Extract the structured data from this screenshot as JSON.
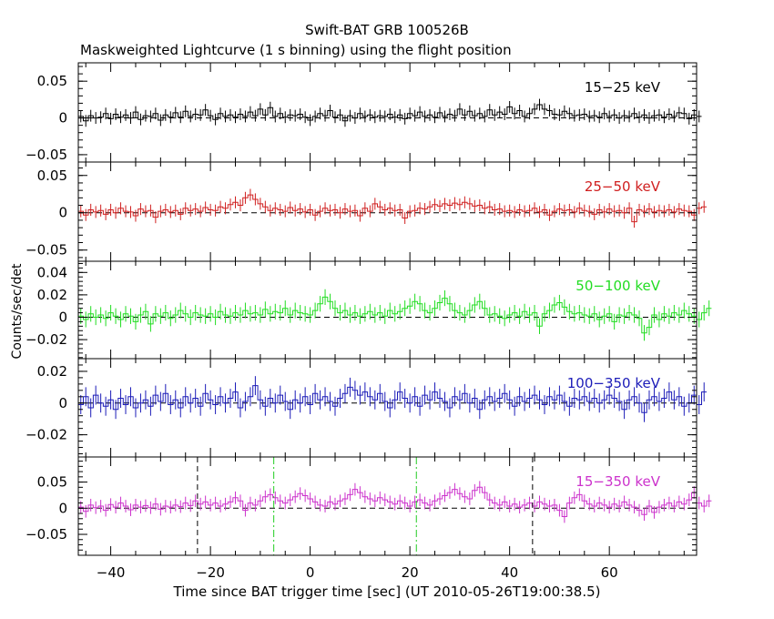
{
  "title": "Swift-BAT GRB 100526B",
  "subtitle": "Maskweighted Lightcurve (1 s binning) using the flight position",
  "xlabel": "Time since BAT trigger time [sec] (UT 2010-05-26T19:00:38.5)",
  "ylabel": "Counts/sec/det",
  "chart_data": {
    "type": "line",
    "xlim": [
      -46.5,
      77.5
    ],
    "x_ticks": [
      -40,
      -20,
      0,
      20,
      40,
      60
    ],
    "x_tick_labels": [
      "−40",
      "−20",
      "0",
      "20",
      "40",
      "60"
    ],
    "dashed_markers_x": [
      -22.6,
      44.6
    ],
    "dashdot_markers_x": [
      -7.3,
      21.3
    ],
    "panels": [
      {
        "band": "15−25 keV",
        "color": "#000000",
        "ylim": [
          -0.06,
          0.075
        ],
        "y_ticks": [
          -0.05,
          0,
          0.05
        ],
        "y_tick_labels": [
          "−0.05",
          "0",
          "0.05"
        ],
        "values": [
          0.002,
          -0.004,
          0.003,
          0.0,
          0.001,
          0.006,
          -0.001,
          0.005,
          0.001,
          0.004,
          0.0,
          0.008,
          -0.002,
          0.003,
          0.002,
          0.006,
          -0.003,
          0.004,
          0.001,
          0.007,
          0.001,
          0.009,
          0.002,
          0.005,
          0.004,
          0.011,
          0.003,
          -0.002,
          0.006,
          0.002,
          0.004,
          0.001,
          0.005,
          0.002,
          0.008,
          0.003,
          0.012,
          0.004,
          0.014,
          0.002,
          0.006,
          0.001,
          0.004,
          0.003,
          0.005,
          0.001,
          -0.003,
          0.002,
          0.006,
          0.003,
          0.01,
          0.001,
          0.004,
          -0.004,
          0.003,
          0.0,
          0.006,
          0.002,
          0.004,
          0.001,
          0.003,
          0.002,
          0.005,
          0.001,
          0.004,
          -0.001,
          0.006,
          0.003,
          0.008,
          0.002,
          0.004,
          0.001,
          0.007,
          0.002,
          0.005,
          0.003,
          0.012,
          0.004,
          0.009,
          0.003,
          0.006,
          0.002,
          0.011,
          0.004,
          0.008,
          0.005,
          0.015,
          0.006,
          0.01,
          0.002,
          0.006,
          0.012,
          0.018,
          0.012,
          0.01,
          0.005,
          0.004,
          0.009,
          0.006,
          0.003,
          0.004,
          0.005,
          0.002,
          0.003,
          0.001,
          0.006,
          0.002,
          0.004,
          0.0,
          0.003,
          0.002,
          0.006,
          0.001,
          0.004,
          0.0,
          0.003,
          0.004,
          0.001,
          0.005,
          0.002,
          0.007,
          0.006,
          -0.001,
          0.004,
          0.002
        ],
        "errors": 0.008
      },
      {
        "band": "25−50 keV",
        "color": "#d02020",
        "ylim": [
          -0.065,
          0.068
        ],
        "y_ticks": [
          -0.05,
          0,
          0.05
        ],
        "y_tick_labels": [
          "−0.05",
          "0",
          "0.05"
        ],
        "values": [
          0.002,
          -0.003,
          0.004,
          0.001,
          0.003,
          -0.002,
          0.004,
          0.0,
          0.006,
          0.002,
          0.001,
          -0.004,
          0.005,
          0.002,
          0.003,
          -0.006,
          0.002,
          0.004,
          0.001,
          0.003,
          -0.002,
          0.006,
          0.003,
          0.005,
          0.002,
          0.007,
          0.004,
          0.003,
          0.008,
          0.006,
          0.011,
          0.014,
          0.01,
          0.02,
          0.024,
          0.018,
          0.012,
          0.008,
          0.003,
          0.006,
          0.004,
          0.002,
          0.007,
          0.003,
          0.005,
          0.001,
          0.004,
          -0.003,
          0.002,
          0.006,
          0.003,
          0.004,
          0.0,
          0.005,
          0.002,
          0.003,
          -0.004,
          0.006,
          0.002,
          0.012,
          0.008,
          0.004,
          0.006,
          0.003,
          0.004,
          -0.007,
          0.002,
          0.003,
          0.006,
          0.005,
          0.008,
          0.011,
          0.009,
          0.012,
          0.01,
          0.013,
          0.011,
          0.014,
          0.012,
          0.009,
          0.01,
          0.006,
          0.008,
          0.004,
          0.005,
          0.002,
          0.003,
          0.001,
          0.004,
          0.002,
          0.003,
          0.006,
          0.001,
          0.004,
          -0.003,
          0.002,
          0.005,
          0.003,
          0.004,
          0.001,
          0.006,
          0.003,
          0.002,
          -0.002,
          0.004,
          0.001,
          0.005,
          0.002,
          0.003,
          0.0,
          0.006,
          -0.012,
          0.004,
          0.002,
          0.005,
          0.001,
          0.003,
          0.002,
          0.004,
          0.001,
          0.005,
          0.003,
          0.002,
          -0.003,
          0.006,
          0.008
        ],
        "errors": 0.008
      },
      {
        "band": "50−100 keV",
        "color": "#22dd22",
        "ylim": [
          -0.037,
          0.05
        ],
        "y_ticks": [
          -0.02,
          0,
          0.02,
          0.04
        ],
        "y_tick_labels": [
          "−0.02",
          "0",
          "0.02",
          "0.04"
        ],
        "values": [
          0.001,
          -0.002,
          0.003,
          0.0,
          0.002,
          -0.001,
          0.004,
          0.001,
          -0.002,
          0.003,
          0.001,
          -0.004,
          0.002,
          0.005,
          -0.006,
          0.003,
          0.001,
          0.004,
          -0.001,
          0.002,
          0.006,
          0.003,
          0.0,
          0.004,
          0.002,
          0.001,
          0.003,
          0.0,
          0.005,
          0.002,
          0.001,
          0.004,
          0.002,
          0.006,
          0.003,
          0.004,
          0.002,
          0.007,
          0.003,
          0.005,
          0.004,
          0.008,
          0.002,
          0.006,
          0.004,
          0.003,
          0.002,
          0.006,
          0.012,
          0.018,
          0.014,
          0.008,
          0.004,
          0.006,
          0.002,
          0.004,
          0.001,
          0.003,
          0.005,
          0.002,
          0.004,
          0.001,
          0.006,
          0.003,
          0.005,
          0.008,
          0.01,
          0.014,
          0.012,
          0.006,
          0.004,
          0.008,
          0.013,
          0.017,
          0.012,
          0.006,
          0.004,
          0.002,
          0.006,
          0.011,
          0.014,
          0.008,
          0.002,
          0.003,
          0.001,
          -0.001,
          0.002,
          0.004,
          0.001,
          0.005,
          0.002,
          0.004,
          -0.008,
          0.003,
          0.006,
          0.011,
          0.013,
          0.009,
          0.005,
          0.003,
          0.004,
          0.002,
          0.001,
          0.003,
          -0.002,
          0.001,
          0.003,
          -0.004,
          0.002,
          0.001,
          0.004,
          0.002,
          -0.001,
          -0.014,
          -0.009,
          0.002,
          -0.002,
          0.003,
          0.001,
          0.004,
          0.002,
          0.006,
          0.003,
          0.001,
          -0.002,
          0.004,
          0.008
        ],
        "errors": 0.007
      },
      {
        "band": "100−350 keV",
        "color": "#1c1cb8",
        "ylim": [
          -0.034,
          0.028
        ],
        "y_ticks": [
          -0.02,
          0,
          0.02
        ],
        "y_tick_labels": [
          "−0.02",
          "0",
          "0.02"
        ],
        "values": [
          -0.001,
          0.004,
          -0.003,
          0.005,
          0.0,
          -0.002,
          0.002,
          -0.004,
          0.003,
          -0.001,
          0.004,
          -0.003,
          0.0,
          0.002,
          -0.002,
          0.005,
          0.001,
          0.006,
          -0.001,
          0.002,
          -0.003,
          0.004,
          0.0,
          0.003,
          -0.002,
          0.006,
          0.002,
          -0.001,
          0.004,
          0.0,
          0.003,
          0.007,
          -0.003,
          0.001,
          0.004,
          0.011,
          0.002,
          -0.002,
          0.003,
          0.0,
          0.005,
          0.001,
          -0.004,
          0.002,
          0.0,
          0.004,
          -0.001,
          0.006,
          0.002,
          0.004,
          0.001,
          -0.002,
          0.003,
          0.006,
          0.01,
          0.008,
          0.005,
          0.007,
          0.004,
          0.002,
          0.006,
          0.001,
          -0.003,
          0.002,
          0.007,
          0.003,
          0.0,
          0.004,
          -0.002,
          0.005,
          0.002,
          0.007,
          0.003,
          0.001,
          -0.003,
          0.004,
          0.002,
          0.006,
          0.0,
          0.003,
          -0.004,
          0.002,
          0.004,
          0.001,
          0.003,
          0.006,
          0.002,
          -0.002,
          0.004,
          0.001,
          0.003,
          0.005,
          0.002,
          -0.001,
          0.004,
          0.002,
          0.005,
          0.001,
          -0.002,
          0.003,
          0.002,
          0.004,
          0.001,
          0.003,
          0.0,
          0.002,
          0.005,
          0.003,
          0.001,
          -0.004,
          0.002,
          0.004,
          0.0,
          -0.006,
          0.002,
          0.004,
          0.001,
          0.003,
          0.007,
          0.002,
          0.004,
          -0.002,
          0.0,
          0.005,
          -0.001,
          0.007
        ],
        "errors": 0.006
      },
      {
        "band": "15−350 keV",
        "color": "#cc33cc",
        "ylim": [
          -0.09,
          0.098
        ],
        "y_ticks": [
          -0.05,
          0,
          0.05
        ],
        "y_tick_labels": [
          "−0.05",
          "0",
          "0.05"
        ],
        "values": [
          0.002,
          -0.006,
          0.006,
          0.001,
          0.004,
          -0.004,
          0.007,
          0.002,
          0.01,
          0.004,
          -0.003,
          0.006,
          0.002,
          0.005,
          0.001,
          0.008,
          -0.002,
          0.004,
          0.002,
          0.006,
          0.003,
          0.01,
          0.005,
          0.014,
          0.008,
          0.012,
          0.006,
          0.01,
          0.004,
          0.008,
          0.012,
          0.02,
          0.014,
          -0.004,
          0.01,
          0.006,
          0.014,
          0.022,
          0.026,
          0.02,
          0.014,
          0.01,
          0.016,
          0.022,
          0.028,
          0.024,
          0.018,
          0.012,
          0.006,
          0.004,
          0.012,
          0.008,
          0.014,
          0.018,
          0.026,
          0.036,
          0.03,
          0.022,
          0.018,
          0.014,
          0.02,
          0.016,
          0.012,
          0.008,
          0.014,
          0.01,
          0.004,
          0.012,
          0.016,
          0.01,
          0.006,
          0.014,
          0.018,
          0.024,
          0.03,
          0.036,
          0.028,
          0.022,
          0.018,
          0.034,
          0.04,
          0.03,
          0.016,
          0.01,
          0.006,
          0.012,
          0.004,
          0.008,
          0.002,
          0.006,
          0.01,
          0.004,
          0.012,
          0.008,
          0.004,
          0.006,
          -0.004,
          -0.016,
          0.01,
          0.02,
          0.026,
          0.014,
          0.008,
          0.004,
          0.01,
          0.006,
          0.002,
          0.008,
          0.004,
          0.012,
          0.006,
          0.002,
          -0.004,
          -0.012,
          0.004,
          -0.008,
          0.002,
          0.006,
          0.01,
          0.004,
          0.012,
          0.008,
          0.016,
          0.03,
          0.01,
          0.004,
          0.014
        ],
        "errors": 0.012
      }
    ]
  }
}
